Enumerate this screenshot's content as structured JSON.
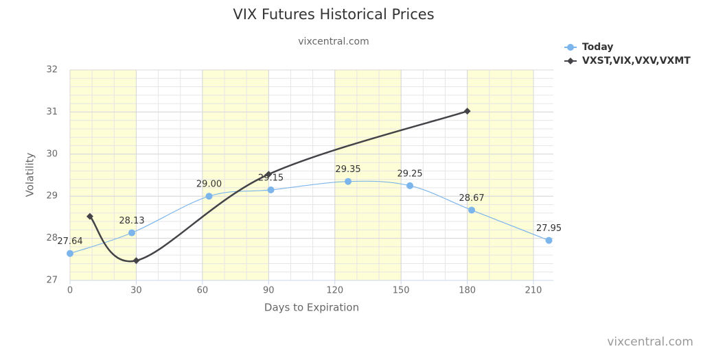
{
  "chart_data": {
    "type": "spline",
    "title": "VIX Futures Historical Prices",
    "subtitle": "vixcentral.com",
    "credits": "vixcentral.com",
    "x_label": "Days to Expiration",
    "y_label": "Volatility",
    "xlim": [
      0,
      219
    ],
    "xticks": [
      0,
      30,
      60,
      90,
      120,
      150,
      180,
      210
    ],
    "ylim": [
      27,
      32
    ],
    "yticks": [
      27,
      28,
      29,
      30,
      31,
      32
    ],
    "minor_step": {
      "x": 10,
      "y": 0.2
    },
    "plot_bands": [
      [
        0,
        30
      ],
      [
        60,
        90
      ],
      [
        120,
        150
      ],
      [
        180,
        210
      ]
    ],
    "band_color": "#fdfdd6",
    "grid": true,
    "legend": "top-right",
    "series": [
      {
        "name": "Today",
        "color": "#7cb5ec",
        "marker": "circle",
        "x": [
          0,
          28,
          63,
          91,
          126,
          154,
          182,
          217
        ],
        "values": [
          27.64,
          28.13,
          29,
          29.15,
          29.35,
          29.25,
          28.67,
          27.95
        ],
        "value_labels": [
          "27.64",
          "28.13",
          "29.00",
          "29.15",
          "29.35",
          "29.25",
          "28.67",
          "27.95"
        ]
      },
      {
        "name": "VXST,VIX,VXV,VXMT",
        "color": "#434348",
        "marker": "diamond",
        "x": [
          9,
          30,
          90,
          180
        ],
        "values": [
          28.52,
          27.47,
          29.52,
          31.02
        ]
      }
    ]
  }
}
